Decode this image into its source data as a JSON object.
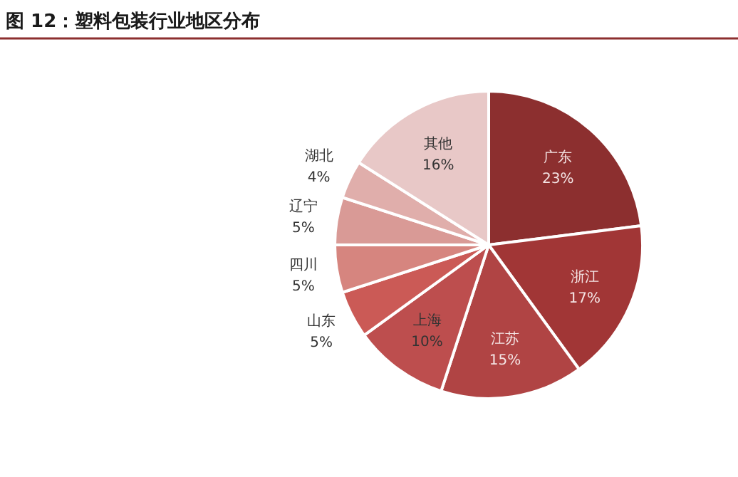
{
  "chart_data": {
    "type": "pie",
    "title": "图 12：塑料包装行业地区分布",
    "categories": [
      "广东",
      "浙江",
      "江苏",
      "上海",
      "山东",
      "四川",
      "辽宁",
      "湖北",
      "其他"
    ],
    "values": [
      23,
      17,
      15,
      10,
      5,
      5,
      5,
      4,
      16
    ],
    "value_labels": [
      "23%",
      "17%",
      "15%",
      "10%",
      "5%",
      "5%",
      "5%",
      "4%",
      "16%"
    ],
    "colors": [
      "#8c2f2f",
      "#a13636",
      "#b04444",
      "#bd4e4e",
      "#cb5a56",
      "#d6857f",
      "#d99a96",
      "#e0aeab",
      "#e8c8c7"
    ]
  }
}
